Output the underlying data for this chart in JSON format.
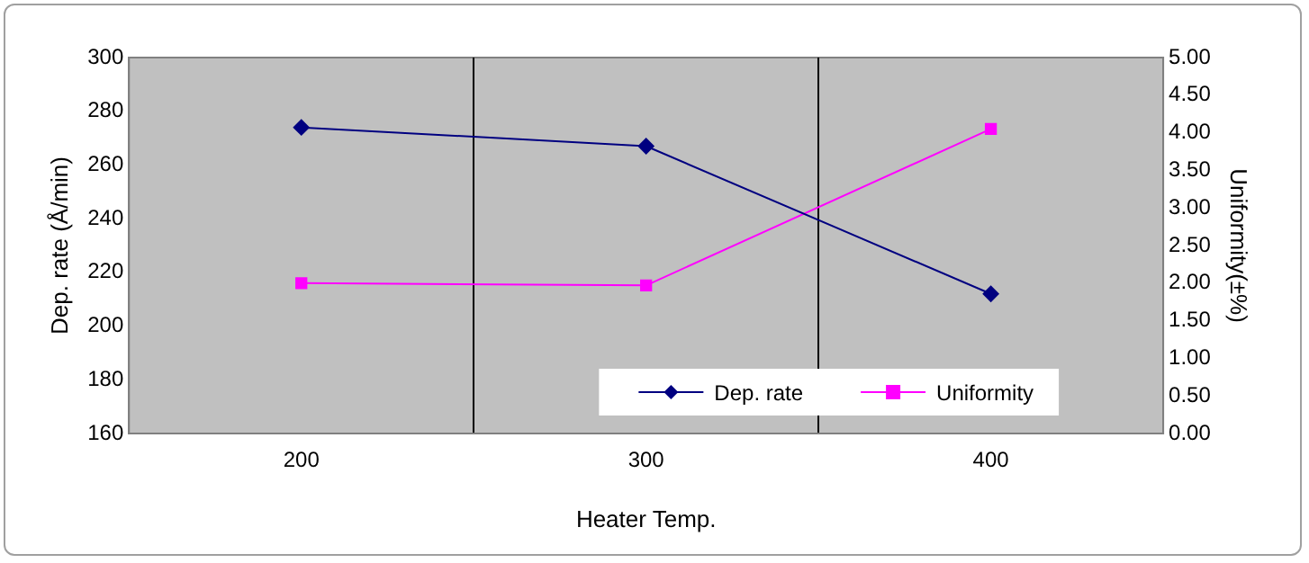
{
  "chart_data": {
    "type": "line",
    "xlabel": "Heater Temp.",
    "ylabel": "Dep. rate (Å/min)",
    "y2label": "Uniformity(±%)",
    "categories": [
      "200",
      "300",
      "400"
    ],
    "series": [
      {
        "name": "Dep. rate",
        "color": "#000080",
        "marker": "diamond",
        "values": [
          274,
          267,
          212
        ]
      },
      {
        "name": "Uniformity",
        "color": "#ff00ff",
        "marker": "square",
        "axis": "y2",
        "values": [
          2.0,
          1.97,
          4.05
        ]
      }
    ],
    "ylim": [
      160,
      300
    ],
    "yticks": [
      160,
      180,
      200,
      220,
      240,
      260,
      280,
      300
    ],
    "y2lim": [
      0,
      5
    ],
    "y2ticks": [
      {
        "value": 0,
        "label": "0.00"
      },
      {
        "value": 0.5,
        "label": "0.50"
      },
      {
        "value": 1,
        "label": "1.00"
      },
      {
        "value": 1.5,
        "label": "1.50"
      },
      {
        "value": 2,
        "label": "2.00"
      },
      {
        "value": 2.5,
        "label": "2.50"
      },
      {
        "value": 3,
        "label": "3.00"
      },
      {
        "value": 3.5,
        "label": "3.50"
      },
      {
        "value": 4,
        "label": "4.00"
      },
      {
        "value": 4.5,
        "label": "4.50"
      },
      {
        "value": 5,
        "label": "5.00"
      }
    ],
    "grid": "x",
    "legend": "bottom right",
    "line_style": "solid"
  }
}
